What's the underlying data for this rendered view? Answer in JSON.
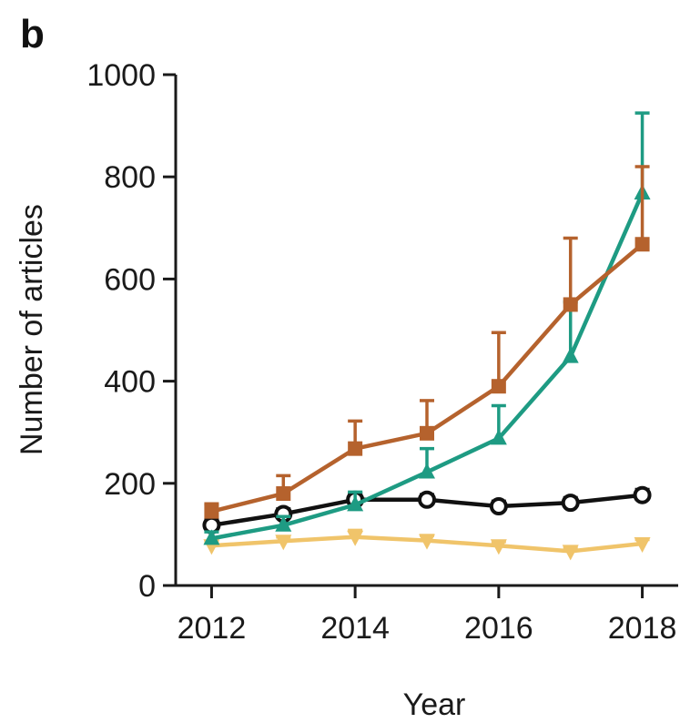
{
  "panel_label": "b",
  "chart_data": {
    "type": "line",
    "title": "",
    "xlabel": "Year",
    "ylabel": "Number of articles",
    "x": [
      2012,
      2013,
      2014,
      2015,
      2016,
      2017,
      2018
    ],
    "x_tick_labels": [
      "2012",
      "2014",
      "2016",
      "2018"
    ],
    "x_tick_values": [
      2012,
      2014,
      2016,
      2018
    ],
    "xlim": [
      2011.5,
      2018.5
    ],
    "ylim": [
      0,
      1000
    ],
    "y_ticks": [
      0,
      200,
      400,
      600,
      800,
      1000
    ],
    "y_tick_labels": [
      "0",
      "200",
      "400",
      "600",
      "800",
      "1000"
    ],
    "grid": false,
    "series": [
      {
        "marker": "square",
        "color": "#b5622d",
        "values": [
          145,
          180,
          268,
          298,
          390,
          550,
          668
        ],
        "error_upper": [
          160,
          215,
          322,
          362,
          495,
          680,
          820
        ]
      },
      {
        "marker": "triangle-up",
        "color": "#1e9b83",
        "values": [
          92,
          118,
          158,
          222,
          288,
          448,
          768
        ],
        "error_upper": [
          105,
          135,
          183,
          268,
          352,
          555,
          925
        ]
      },
      {
        "marker": "circle-open",
        "color": "#111111",
        "values": [
          118,
          140,
          168,
          168,
          155,
          162,
          177
        ],
        "error_upper": [
          128,
          150,
          180,
          178,
          165,
          172,
          188
        ]
      },
      {
        "marker": "triangle-down",
        "color": "#f0c46a",
        "values": [
          78,
          87,
          95,
          88,
          78,
          67,
          82
        ],
        "error_upper": [
          85,
          95,
          108,
          98,
          86,
          74,
          90
        ]
      }
    ]
  }
}
